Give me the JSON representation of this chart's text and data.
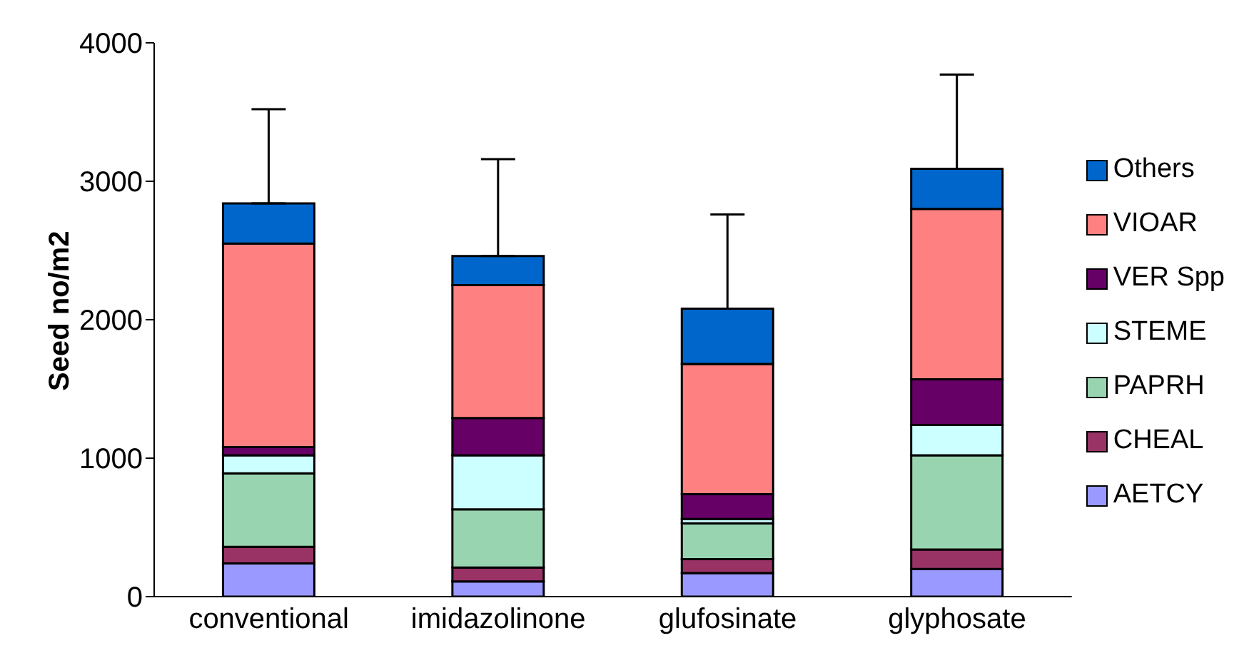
{
  "chart_data": {
    "type": "bar",
    "stacked": true,
    "ylabel": "Seed no/m2",
    "categories": [
      "conventional",
      "imidazolinone",
      "glufosinate",
      "glyphosate"
    ],
    "series": [
      {
        "name": "AETCY",
        "color": "#9999ff",
        "values": [
          240,
          110,
          170,
          200
        ]
      },
      {
        "name": "CHEAL",
        "color": "#993366",
        "values": [
          120,
          100,
          100,
          140
        ]
      },
      {
        "name": "PAPRH",
        "color": "#99d4b0",
        "values": [
          530,
          420,
          260,
          680
        ]
      },
      {
        "name": "STEME",
        "color": "#ccffff",
        "values": [
          130,
          390,
          30,
          220
        ]
      },
      {
        "name": "VER Spp",
        "color": "#660066",
        "values": [
          60,
          270,
          180,
          330
        ]
      },
      {
        "name": "VIOAR",
        "color": "#ff8080",
        "values": [
          1470,
          960,
          940,
          1230
        ]
      },
      {
        "name": "Others",
        "color": "#0066cc",
        "values": [
          290,
          210,
          400,
          290
        ],
        "errors": [
          [
            2840,
            3520
          ],
          [
            2460,
            3160
          ],
          [
            2080,
            2760
          ],
          [
            3090,
            3770
          ]
        ]
      }
    ],
    "ylim": [
      0,
      4000
    ],
    "yticks": [
      0,
      1000,
      2000,
      3000,
      4000
    ],
    "grid": false,
    "legend": "right"
  }
}
